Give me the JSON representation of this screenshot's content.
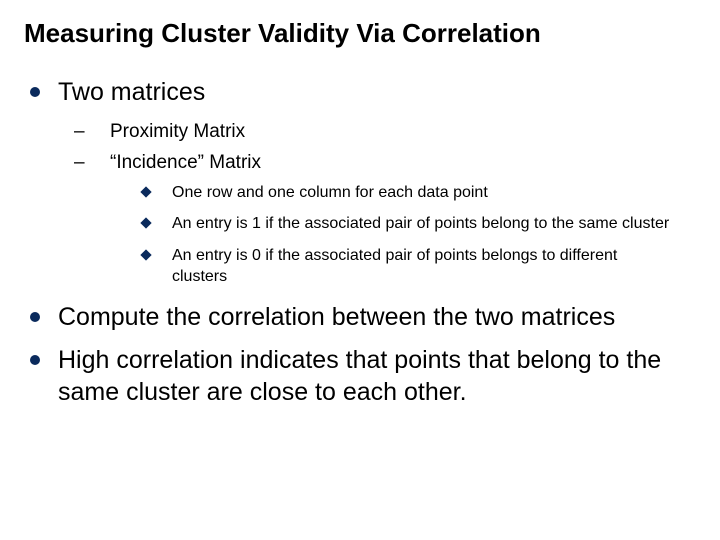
{
  "title": "Measuring Cluster Validity Via Correlation",
  "bullets": {
    "b1": "Two matrices",
    "b1_sub1": "Proximity Matrix",
    "b1_sub2": "“Incidence” Matrix",
    "b1_sub2_d1": "One row and one column for each data point",
    "b1_sub2_d2": "An entry is 1 if the associated pair of points belong to the same cluster",
    "b1_sub2_d3": "An entry is 0 if the associated pair of points belongs to different clusters",
    "b2": "Compute the correlation between the two matrices",
    "b3": "High correlation indicates that points that belong to the same cluster are close to each other."
  },
  "colors": {
    "bullet": "#0a2a5c",
    "text": "#000000",
    "background": "#ffffff"
  },
  "fontsizes": {
    "title": 26,
    "l1": 25,
    "l2": 19,
    "l3": 16
  }
}
